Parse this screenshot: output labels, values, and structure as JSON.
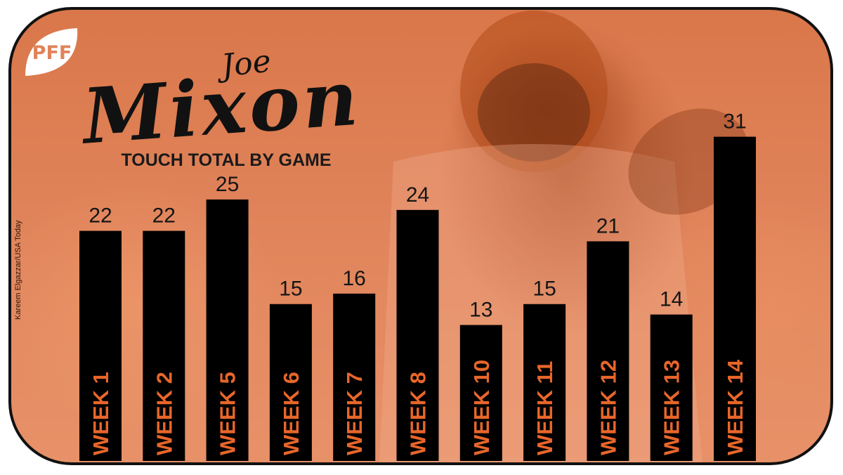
{
  "brand": {
    "logo_text": "PFF"
  },
  "title": {
    "first_name": "Joe",
    "last_name": "Mixon",
    "subtitle": "TOUCH TOTAL BY GAME"
  },
  "photo_credit": "Kareem Elgazzar/USA Today",
  "colors": {
    "bar": "#000000",
    "bar_label": "#e8662a",
    "value_label": "#151515",
    "background": "#e0835a"
  },
  "chart_data": {
    "type": "bar",
    "title": "TOUCH TOTAL BY GAME",
    "categories": [
      "WEEK 1",
      "WEEK 2",
      "WEEK 5",
      "WEEK 6",
      "WEEK 7",
      "WEEK 8",
      "WEEK 10",
      "WEEK 11",
      "WEEK 12",
      "WEEK 13",
      "WEEK 14"
    ],
    "values": [
      22,
      22,
      25,
      15,
      16,
      24,
      13,
      15,
      21,
      14,
      31
    ],
    "xlabel": "",
    "ylabel": "",
    "ylim": [
      0,
      43
    ],
    "grid": false,
    "legend": "none"
  }
}
